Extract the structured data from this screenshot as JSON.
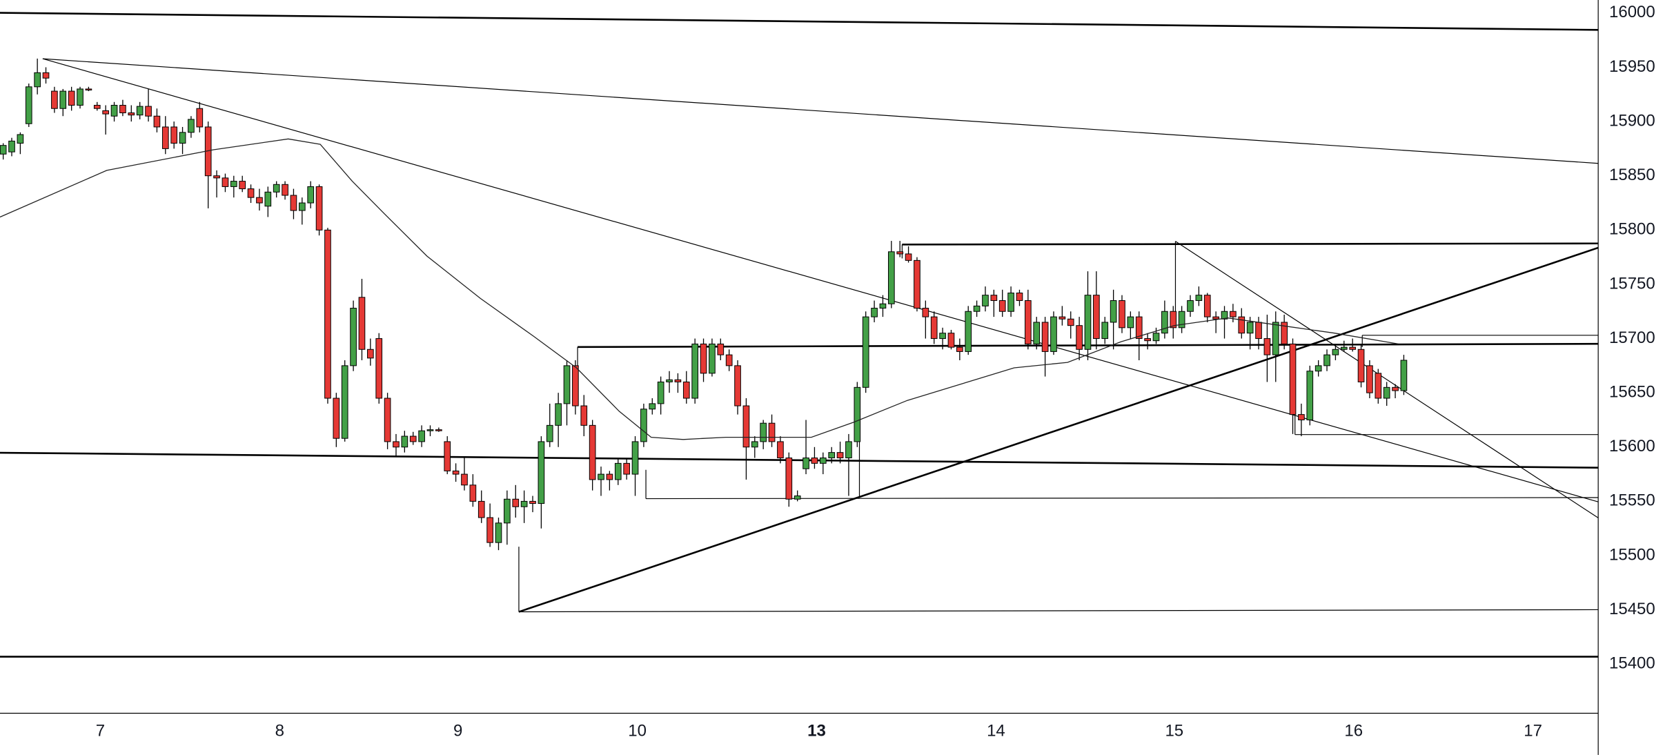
{
  "chart_data": {
    "type": "candlestick",
    "xlim": [
      -0.375,
      186.75
    ],
    "xticks": [
      {
        "value": 11.375,
        "label": "7"
      },
      {
        "value": 32.375,
        "label": "8"
      },
      {
        "value": 53.25,
        "label": "9"
      },
      {
        "value": 74.25,
        "label": "10"
      },
      {
        "value": 95.25,
        "label": "13",
        "bold": true
      },
      {
        "value": 116.25,
        "label": "14"
      },
      {
        "value": 137.125,
        "label": "15"
      },
      {
        "value": 158.125,
        "label": "16"
      },
      {
        "value": 179.125,
        "label": "17"
      }
    ],
    "ylim": [
      15355,
      16012
    ],
    "yticks": [
      15400,
      15450,
      15500,
      15550,
      15600,
      15650,
      15700,
      15750,
      15800,
      15850,
      15900,
      15950,
      16000
    ],
    "grid": false,
    "up_color": "#43a047",
    "down_color": "#e53935",
    "ohlc": [
      [
        15870,
        15880,
        15865,
        15878
      ],
      [
        15872,
        15885,
        15868,
        15882
      ],
      [
        15880,
        15890,
        15870,
        15888
      ],
      [
        15898,
        15935,
        15895,
        15932
      ],
      [
        15932,
        15958,
        15925,
        15945
      ],
      [
        15945,
        15950,
        15935,
        15940
      ],
      [
        15928,
        15932,
        15908,
        15912
      ],
      [
        15912,
        15930,
        15905,
        15928
      ],
      [
        15928,
        15932,
        15910,
        15915
      ],
      [
        15915,
        15932,
        15912,
        15930
      ],
      [
        15930,
        15932,
        15928,
        15929
      ],
      [
        15915,
        15918,
        15910,
        15912
      ],
      [
        15910,
        15915,
        15888,
        15907
      ],
      [
        15905,
        15918,
        15900,
        15915
      ],
      [
        15915,
        15920,
        15905,
        15908
      ],
      [
        15908,
        15915,
        15900,
        15906
      ],
      [
        15906,
        15918,
        15902,
        15914
      ],
      [
        15914,
        15930,
        15900,
        15905
      ],
      [
        15905,
        15912,
        15890,
        15895
      ],
      [
        15895,
        15905,
        15870,
        15875
      ],
      [
        15895,
        15900,
        15875,
        15880
      ],
      [
        15880,
        15895,
        15870,
        15890
      ],
      [
        15890,
        15905,
        15885,
        15902
      ],
      [
        15912,
        15918,
        15890,
        15895
      ],
      [
        15895,
        15900,
        15820,
        15850
      ],
      [
        15850,
        15855,
        15830,
        15848
      ],
      [
        15848,
        15852,
        15835,
        15840
      ],
      [
        15840,
        15850,
        15830,
        15845
      ],
      [
        15845,
        15850,
        15835,
        15838
      ],
      [
        15838,
        15842,
        15825,
        15830
      ],
      [
        15830,
        15838,
        15818,
        15825
      ],
      [
        15822,
        15840,
        15812,
        15835
      ],
      [
        15835,
        15845,
        15830,
        15842
      ],
      [
        15842,
        15845,
        15828,
        15832
      ],
      [
        15832,
        15838,
        15810,
        15818
      ],
      [
        15818,
        15830,
        15805,
        15825
      ],
      [
        15825,
        15845,
        15820,
        15840
      ],
      [
        15840,
        15842,
        15795,
        15800
      ],
      [
        15800,
        15802,
        15640,
        15645
      ],
      [
        15645,
        15650,
        15600,
        15608
      ],
      [
        15608,
        15680,
        15605,
        15675
      ],
      [
        15675,
        15735,
        15670,
        15728
      ],
      [
        15738,
        15755,
        15680,
        15690
      ],
      [
        15690,
        15700,
        15675,
        15682
      ],
      [
        15700,
        15705,
        15640,
        15645
      ],
      [
        15645,
        15650,
        15598,
        15605
      ],
      [
        15605,
        15612,
        15592,
        15600
      ],
      [
        15600,
        15615,
        15595,
        15610
      ],
      [
        15610,
        15614,
        15602,
        15605
      ],
      [
        15605,
        15620,
        15600,
        15615
      ],
      [
        15615,
        15620,
        15610,
        15616
      ],
      [
        15616,
        15618,
        15614,
        15615
      ],
      [
        15605,
        15610,
        15575,
        15578
      ],
      [
        15578,
        15585,
        15568,
        15575
      ],
      [
        15575,
        15590,
        15560,
        15565
      ],
      [
        15565,
        15575,
        15545,
        15550
      ],
      [
        15550,
        15560,
        15530,
        15535
      ],
      [
        15535,
        15548,
        15508,
        15512
      ],
      [
        15512,
        15535,
        15505,
        15530
      ],
      [
        15530,
        15560,
        15510,
        15552
      ],
      [
        15552,
        15565,
        15535,
        15545
      ],
      [
        15545,
        15560,
        15530,
        15550
      ],
      [
        15550,
        15555,
        15540,
        15548
      ],
      [
        15548,
        15610,
        15525,
        15605
      ],
      [
        15605,
        15640,
        15600,
        15620
      ],
      [
        15620,
        15650,
        15600,
        15640
      ],
      [
        15640,
        15680,
        15620,
        15675
      ],
      [
        15675,
        15680,
        15630,
        15638
      ],
      [
        15638,
        15648,
        15610,
        15620
      ],
      [
        15620,
        15625,
        15560,
        15570
      ],
      [
        15570,
        15582,
        15555,
        15575
      ],
      [
        15575,
        15578,
        15560,
        15570
      ],
      [
        15570,
        15590,
        15565,
        15585
      ],
      [
        15585,
        15590,
        15570,
        15575
      ],
      [
        15575,
        15610,
        15555,
        15605
      ],
      [
        15605,
        15640,
        15600,
        15635
      ],
      [
        15635,
        15645,
        15630,
        15640
      ],
      [
        15640,
        15665,
        15630,
        15660
      ],
      [
        15660,
        15670,
        15650,
        15662
      ],
      [
        15662,
        15668,
        15650,
        15660
      ],
      [
        15660,
        15670,
        15640,
        15645
      ],
      [
        15645,
        15700,
        15640,
        15695
      ],
      [
        15695,
        15700,
        15660,
        15668
      ],
      [
        15668,
        15700,
        15665,
        15695
      ],
      [
        15695,
        15700,
        15680,
        15685
      ],
      [
        15685,
        15690,
        15670,
        15675
      ],
      [
        15675,
        15680,
        15630,
        15638
      ],
      [
        15638,
        15645,
        15570,
        15600
      ],
      [
        15600,
        15610,
        15590,
        15605
      ],
      [
        15605,
        15625,
        15598,
        15622
      ],
      [
        15622,
        15630,
        15600,
        15605
      ],
      [
        15605,
        15610,
        15585,
        15590
      ],
      [
        15590,
        15595,
        15545,
        15552
      ],
      [
        15552,
        15560,
        15550,
        15555
      ],
      [
        15580,
        15625,
        15575,
        15590
      ],
      [
        15590,
        15600,
        15580,
        15585
      ],
      [
        15585,
        15595,
        15575,
        15590
      ],
      [
        15590,
        15600,
        15585,
        15595
      ],
      [
        15595,
        15605,
        15585,
        15590
      ],
      [
        15590,
        15612,
        15555,
        15605
      ],
      [
        15605,
        15660,
        15600,
        15655
      ],
      [
        15655,
        15725,
        15650,
        15720
      ],
      [
        15720,
        15735,
        15715,
        15728
      ],
      [
        15728,
        15740,
        15720,
        15732
      ],
      [
        15732,
        15790,
        15728,
        15780
      ],
      [
        15780,
        15790,
        15775,
        15778
      ],
      [
        15778,
        15785,
        15770,
        15772
      ],
      [
        15772,
        15775,
        15725,
        15728
      ],
      [
        15728,
        15735,
        15700,
        15720
      ],
      [
        15720,
        15725,
        15695,
        15700
      ],
      [
        15700,
        15710,
        15690,
        15705
      ],
      [
        15705,
        15708,
        15690,
        15692
      ],
      [
        15692,
        15700,
        15680,
        15688
      ],
      [
        15688,
        15730,
        15685,
        15725
      ],
      [
        15725,
        15735,
        15720,
        15730
      ],
      [
        15730,
        15748,
        15725,
        15740
      ],
      [
        15740,
        15745,
        15720,
        15735
      ],
      [
        15735,
        15745,
        15720,
        15725
      ],
      [
        15725,
        15748,
        15720,
        15742
      ],
      [
        15742,
        15745,
        15730,
        15735
      ],
      [
        15735,
        15745,
        15690,
        15695
      ],
      [
        15695,
        15720,
        15690,
        15715
      ],
      [
        15715,
        15720,
        15665,
        15688
      ],
      [
        15688,
        15725,
        15685,
        15720
      ],
      [
        15720,
        15730,
        15712,
        15718
      ],
      [
        15718,
        15725,
        15700,
        15712
      ],
      [
        15712,
        15720,
        15680,
        15690
      ],
      [
        15690,
        15762,
        15680,
        15740
      ],
      [
        15740,
        15762,
        15690,
        15700
      ],
      [
        15700,
        15720,
        15695,
        15715
      ],
      [
        15715,
        15745,
        15690,
        15735
      ],
      [
        15735,
        15740,
        15705,
        15710
      ],
      [
        15710,
        15725,
        15700,
        15720
      ],
      [
        15720,
        15725,
        15680,
        15700
      ],
      [
        15700,
        15705,
        15690,
        15698
      ],
      [
        15698,
        15710,
        15695,
        15705
      ],
      [
        15705,
        15735,
        15700,
        15725
      ],
      [
        15725,
        15730,
        15700,
        15710
      ],
      [
        15710,
        15730,
        15705,
        15725
      ],
      [
        15725,
        15740,
        15720,
        15735
      ],
      [
        15735,
        15748,
        15730,
        15740
      ],
      [
        15740,
        15742,
        15715,
        15720
      ],
      [
        15720,
        15725,
        15705,
        15718
      ],
      [
        15718,
        15730,
        15700,
        15725
      ],
      [
        15725,
        15732,
        15715,
        15720
      ],
      [
        15720,
        15728,
        15700,
        15705
      ],
      [
        15705,
        15720,
        15690,
        15715
      ],
      [
        15715,
        15720,
        15690,
        15700
      ],
      [
        15700,
        15722,
        15660,
        15685
      ],
      [
        15685,
        15725,
        15660,
        15715
      ],
      [
        15715,
        15722,
        15690,
        15695
      ],
      [
        15695,
        15700,
        15612,
        15630
      ],
      [
        15630,
        15640,
        15610,
        15625
      ],
      [
        15625,
        15675,
        15620,
        15670
      ],
      [
        15670,
        15680,
        15665,
        15675
      ],
      [
        15675,
        15690,
        15670,
        15685
      ],
      [
        15685,
        15695,
        15680,
        15690
      ],
      [
        15690,
        15698,
        15688,
        15692
      ],
      [
        15692,
        15700,
        15688,
        15690
      ],
      [
        15690,
        15695,
        15655,
        15660
      ],
      [
        15675,
        15680,
        15645,
        15650
      ],
      [
        15668,
        15672,
        15640,
        15645
      ],
      [
        15645,
        15660,
        15638,
        15655
      ],
      [
        15655,
        15658,
        15645,
        15652
      ],
      [
        15652,
        15685,
        15648,
        15680
      ]
    ],
    "moving_average": {
      "color": "#222222",
      "x": [
        -0.375,
        12.125,
        24.625,
        33.375,
        37.125,
        40.875,
        44.625,
        49.625,
        55.875,
        62.125,
        67.125,
        72.125,
        75.875,
        79.625,
        84.625,
        94.625,
        99.625,
        105.875,
        112.125,
        118.375,
        124.625,
        130.875,
        137.125,
        143.375,
        149.625,
        155.875,
        163.375
      ],
      "values": [
        15812,
        15855,
        15874,
        15884,
        15879,
        15845,
        15815,
        15776,
        15737,
        15702,
        15673,
        15633,
        15609,
        15607,
        15609,
        15609,
        15623,
        15643,
        15658,
        15673,
        15678,
        15697,
        15712,
        15719,
        15712,
        15705,
        15695
      ]
    }
  }
}
